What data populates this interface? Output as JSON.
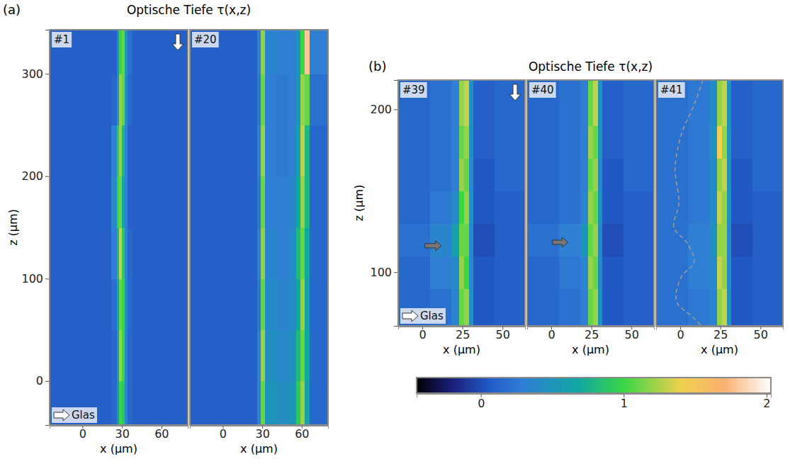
{
  "chart_data": [
    {
      "type": "heatmap",
      "label": "(a)",
      "title": "Optische Tiefe τ(x,z)",
      "xlabel": "x (µm)",
      "ylabel": "z (µm)",
      "annotation": "Glas",
      "xlim": [
        -25,
        80
      ],
      "xticks": [
        0,
        30,
        60
      ],
      "ylim": [
        -43,
        343
      ],
      "yticks": [
        0,
        100,
        200,
        300
      ],
      "panels": [
        {
          "name": "#1",
          "x_edges": [
            -25,
            22,
            26,
            28,
            30,
            32,
            34,
            38,
            80
          ],
          "z_edges": [
            -43,
            0,
            50,
            100,
            150,
            200,
            250,
            300,
            343
          ],
          "values": [
            [
              0.1,
              0.15,
              0.5,
              1.0,
              0.9,
              0.4,
              0.15,
              0.1
            ],
            [
              0.1,
              0.15,
              0.6,
              1.2,
              1.0,
              0.4,
              0.15,
              0.1
            ],
            [
              0.1,
              0.2,
              0.7,
              1.1,
              1.0,
              0.5,
              0.15,
              0.1
            ],
            [
              0.1,
              0.3,
              0.8,
              1.3,
              0.9,
              0.4,
              0.15,
              0.1
            ],
            [
              0.1,
              0.4,
              1.0,
              1.1,
              0.7,
              0.3,
              0.1,
              0.1
            ],
            [
              0.1,
              0.35,
              0.9,
              1.2,
              0.8,
              0.3,
              0.1,
              0.1
            ],
            [
              0.1,
              0.15,
              0.5,
              1.2,
              1.1,
              0.5,
              0.15,
              0.1
            ],
            [
              0.1,
              0.1,
              0.4,
              1.0,
              1.1,
              0.6,
              0.2,
              0.1
            ]
          ]
        },
        {
          "name": "#20",
          "x_edges": [
            -25,
            26,
            29,
            32,
            40,
            50,
            56,
            59,
            62,
            66,
            80
          ],
          "z_edges": [
            -43,
            0,
            50,
            100,
            150,
            200,
            250,
            300,
            343
          ],
          "values": [
            [
              0.1,
              0.3,
              1.1,
              0.5,
              0.45,
              0.5,
              0.9,
              1.2,
              0.6,
              0.15
            ],
            [
              0.1,
              0.3,
              1.2,
              0.45,
              0.4,
              0.45,
              0.8,
              1.1,
              0.7,
              0.15
            ],
            [
              0.1,
              0.25,
              1.1,
              0.4,
              0.35,
              0.4,
              0.7,
              1.2,
              0.6,
              0.15
            ],
            [
              0.1,
              0.3,
              1.2,
              0.35,
              0.3,
              0.4,
              0.8,
              1.1,
              0.7,
              0.15
            ],
            [
              0.1,
              0.25,
              1.1,
              0.3,
              0.3,
              0.35,
              0.7,
              1.2,
              0.8,
              0.15
            ],
            [
              0.1,
              0.3,
              1.2,
              0.3,
              0.25,
              0.3,
              0.6,
              1.3,
              0.8,
              0.15
            ],
            [
              0.1,
              0.25,
              1.1,
              0.3,
              0.25,
              0.3,
              0.5,
              1.2,
              1.1,
              0.2
            ],
            [
              0.1,
              0.3,
              1.2,
              0.35,
              0.3,
              0.3,
              0.5,
              1.0,
              1.8,
              0.3
            ]
          ]
        }
      ]
    },
    {
      "type": "heatmap",
      "label": "(b)",
      "title": "Optische Tiefe τ(x,z)",
      "xlabel": "x (µm)",
      "ylabel": "z (µm)",
      "annotation": "Glas",
      "xlim": [
        -15,
        64
      ],
      "xticks": [
        0,
        25,
        50
      ],
      "ylim": [
        67,
        218
      ],
      "yticks": [
        100,
        200
      ],
      "colorbar": {
        "range": [
          -0.45,
          2.03
        ],
        "ticks": [
          0,
          1,
          2
        ]
      },
      "panels": [
        {
          "name": "#39",
          "x_edges": [
            -15,
            5,
            18,
            23,
            26,
            29,
            32,
            45,
            64
          ],
          "z_edges": [
            67,
            90,
            110,
            130,
            150,
            170,
            190,
            218
          ],
          "values": [
            [
              0.15,
              0.2,
              0.35,
              1.1,
              1.2,
              0.5,
              0.05,
              0.1
            ],
            [
              0.15,
              0.3,
              0.4,
              1.2,
              1.0,
              0.4,
              0.05,
              0.1
            ],
            [
              0.2,
              0.35,
              0.6,
              1.1,
              1.1,
              0.4,
              0.0,
              0.1
            ],
            [
              0.15,
              0.25,
              0.4,
              1.0,
              1.2,
              0.5,
              0.05,
              0.1
            ],
            [
              0.15,
              0.2,
              0.3,
              1.2,
              1.1,
              0.4,
              0.05,
              0.15
            ],
            [
              0.15,
              0.2,
              0.3,
              1.1,
              1.2,
              0.5,
              0.1,
              0.15
            ],
            [
              0.15,
              0.2,
              0.3,
              1.2,
              1.3,
              0.5,
              0.1,
              0.15
            ]
          ]
        },
        {
          "name": "#40",
          "x_edges": [
            -15,
            5,
            18,
            23,
            26,
            29,
            32,
            45,
            64
          ],
          "z_edges": [
            67,
            90,
            110,
            130,
            150,
            170,
            190,
            218
          ],
          "values": [
            [
              0.15,
              0.2,
              0.3,
              1.1,
              1.2,
              0.5,
              0.05,
              0.1
            ],
            [
              0.15,
              0.25,
              0.35,
              1.2,
              1.1,
              0.4,
              0.05,
              0.1
            ],
            [
              0.2,
              0.3,
              0.5,
              1.1,
              1.2,
              0.4,
              0.0,
              0.1
            ],
            [
              0.15,
              0.2,
              0.35,
              1.2,
              1.1,
              0.5,
              0.05,
              0.1
            ],
            [
              0.15,
              0.2,
              0.3,
              1.1,
              1.2,
              0.4,
              0.05,
              0.15
            ],
            [
              0.15,
              0.2,
              0.3,
              1.2,
              1.1,
              0.5,
              0.1,
              0.15
            ],
            [
              0.15,
              0.2,
              0.3,
              1.1,
              1.3,
              0.5,
              0.1,
              0.15
            ]
          ]
        },
        {
          "name": "#41",
          "x_edges": [
            -15,
            5,
            18,
            23,
            26,
            29,
            32,
            45,
            64
          ],
          "z_edges": [
            67,
            90,
            110,
            130,
            150,
            170,
            190,
            218
          ],
          "values": [
            [
              0.2,
              0.25,
              0.35,
              1.2,
              1.3,
              0.5,
              0.05,
              0.1
            ],
            [
              0.2,
              0.3,
              0.4,
              1.3,
              1.2,
              0.4,
              0.05,
              0.1
            ],
            [
              0.2,
              0.3,
              0.45,
              1.2,
              1.2,
              0.4,
              0.0,
              0.1
            ],
            [
              0.2,
              0.25,
              0.4,
              1.3,
              1.2,
              0.5,
              0.05,
              0.1
            ],
            [
              0.2,
              0.25,
              0.4,
              1.2,
              1.3,
              0.5,
              0.05,
              0.15
            ],
            [
              0.2,
              0.25,
              0.45,
              1.4,
              1.2,
              0.5,
              0.1,
              0.15
            ],
            [
              0.2,
              0.25,
              0.4,
              1.2,
              1.3,
              0.5,
              0.1,
              0.15
            ]
          ]
        }
      ]
    }
  ]
}
